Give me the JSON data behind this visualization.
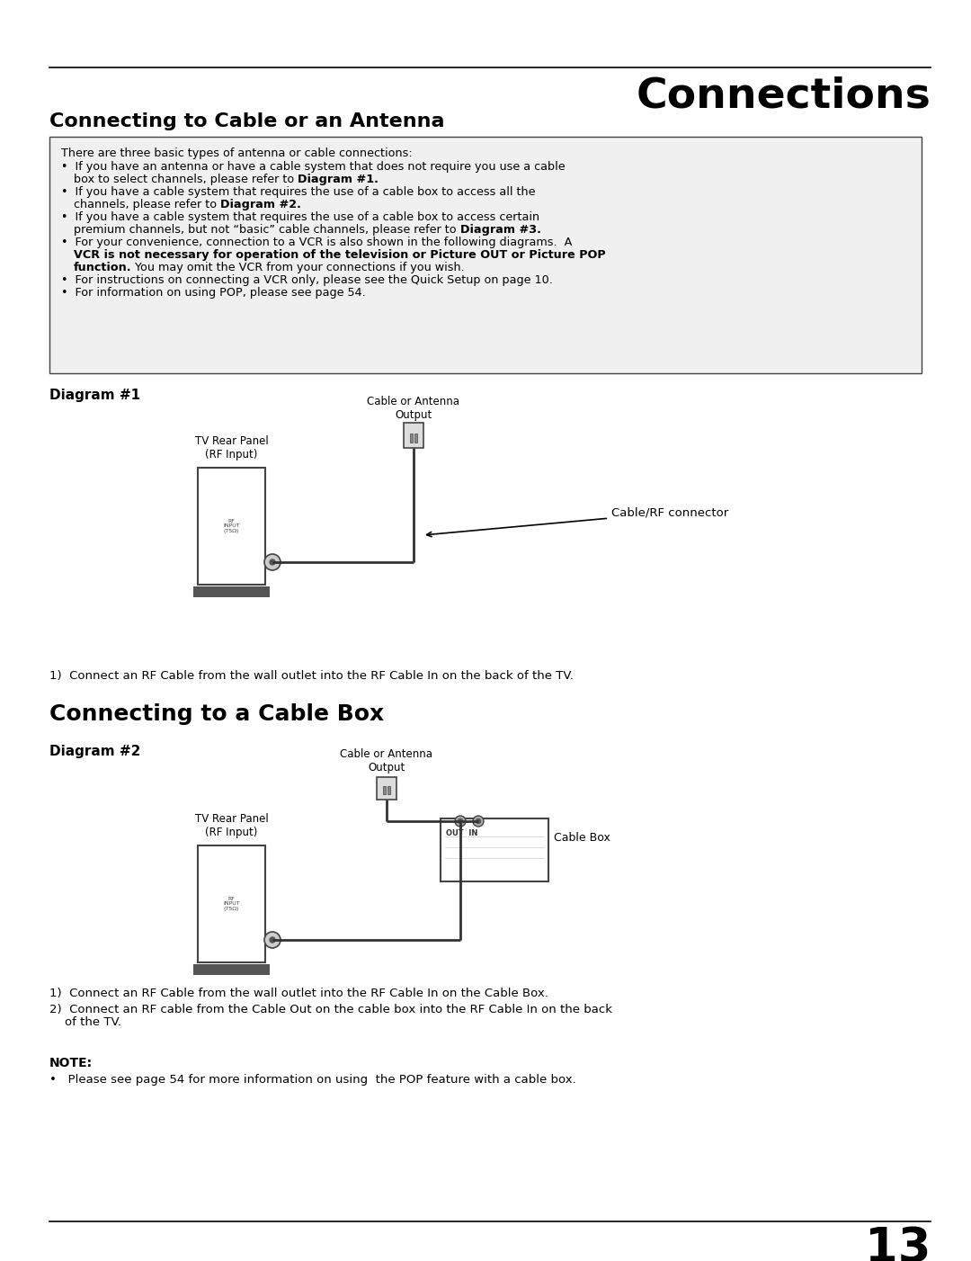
{
  "page_title": "Connections",
  "section1_title": "Connecting to Cable or an Antenna",
  "diag1_label": "Diagram #1",
  "diag1_antenna_label": "Cable or Antenna\nOutput",
  "diag1_tv_label": "TV Rear Panel\n(RF Input)",
  "diag1_rf_label": "Cable/RF connector",
  "diag1_step1": "1)  Connect an RF Cable from the wall outlet into the RF Cable In on the back of the TV.",
  "section2_title": "Connecting to a Cable Box",
  "diag2_label": "Diagram #2",
  "diag2_antenna_label": "Cable or Antenna\nOutput",
  "diag2_tv_label": "TV Rear Panel\n(RF Input)",
  "diag2_cablebox_label": "Cable Box",
  "diag2_step1": "1)  Connect an RF Cable from the wall outlet into the RF Cable In on the Cable Box.",
  "diag2_step2_line1": "2)  Connect an RF cable from the Cable Out on the cable box into the RF Cable In on the back",
  "diag2_step2_line2": "    of the TV.",
  "note_title": "NOTE:",
  "note_text": "•   Please see page 54 for more information on using  the POP feature with a cable box.",
  "page_number": "13",
  "bg_color": "#ffffff",
  "text_color": "#000000",
  "border_color": "#444444",
  "wire_color": "#333333",
  "box_bg": "#f0f0f0"
}
